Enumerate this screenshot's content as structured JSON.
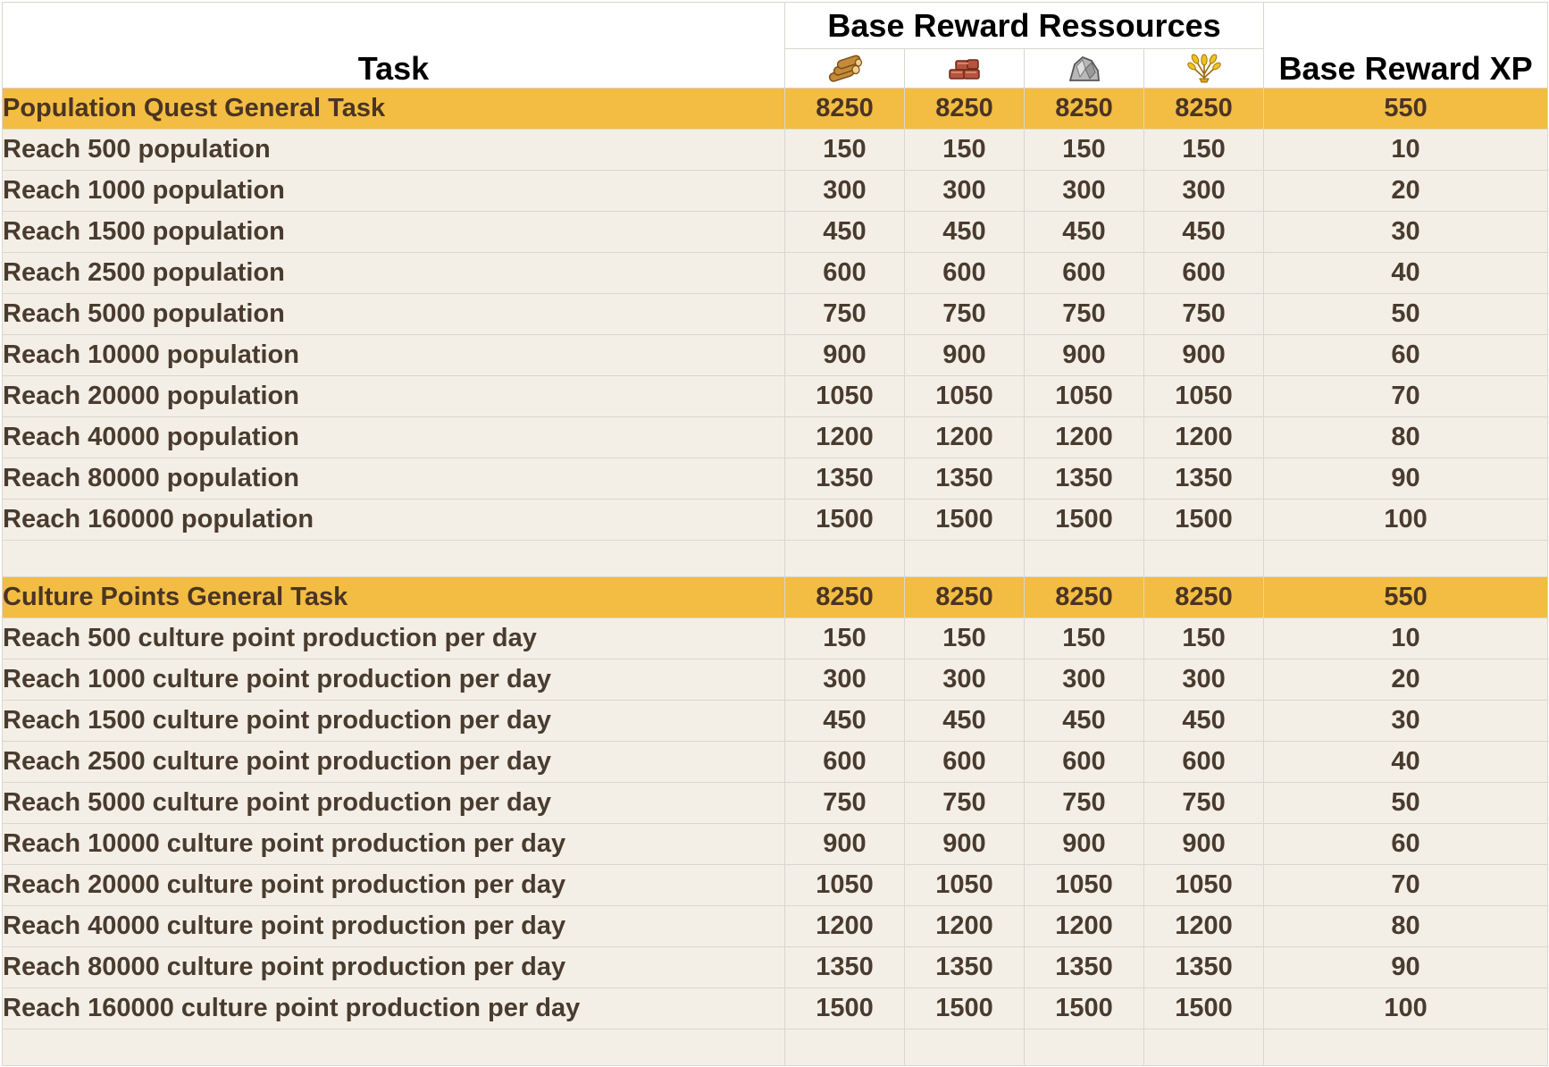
{
  "header": {
    "task_label": "Task",
    "resources_label": "Base Reward Ressources",
    "xp_label": "Base Reward XP",
    "resource_icons": [
      "wood-icon",
      "clay-icon",
      "iron-icon",
      "crop-icon"
    ]
  },
  "sections": [
    {
      "title": "Population Quest General Task",
      "totals": [
        "8250",
        "8250",
        "8250",
        "8250"
      ],
      "total_xp": "550",
      "rows": [
        {
          "task": "Reach 500 population",
          "res": [
            "150",
            "150",
            "150",
            "150"
          ],
          "xp": "10"
        },
        {
          "task": "Reach 1000 population",
          "res": [
            "300",
            "300",
            "300",
            "300"
          ],
          "xp": "20"
        },
        {
          "task": "Reach 1500 population",
          "res": [
            "450",
            "450",
            "450",
            "450"
          ],
          "xp": "30"
        },
        {
          "task": "Reach 2500 population",
          "res": [
            "600",
            "600",
            "600",
            "600"
          ],
          "xp": "40"
        },
        {
          "task": "Reach 5000 population",
          "res": [
            "750",
            "750",
            "750",
            "750"
          ],
          "xp": "50"
        },
        {
          "task": "Reach 10000 population",
          "res": [
            "900",
            "900",
            "900",
            "900"
          ],
          "xp": "60"
        },
        {
          "task": "Reach 20000 population",
          "res": [
            "1050",
            "1050",
            "1050",
            "1050"
          ],
          "xp": "70"
        },
        {
          "task": "Reach 40000 population",
          "res": [
            "1200",
            "1200",
            "1200",
            "1200"
          ],
          "xp": "80"
        },
        {
          "task": "Reach 80000 population",
          "res": [
            "1350",
            "1350",
            "1350",
            "1350"
          ],
          "xp": "90"
        },
        {
          "task": "Reach 160000 population",
          "res": [
            "1500",
            "1500",
            "1500",
            "1500"
          ],
          "xp": "100"
        }
      ]
    },
    {
      "title": "Culture Points General Task",
      "totals": [
        "8250",
        "8250",
        "8250",
        "8250"
      ],
      "total_xp": "550",
      "rows": [
        {
          "task": "Reach 500 culture point production per day",
          "res": [
            "150",
            "150",
            "150",
            "150"
          ],
          "xp": "10"
        },
        {
          "task": "Reach 1000 culture point production per day",
          "res": [
            "300",
            "300",
            "300",
            "300"
          ],
          "xp": "20"
        },
        {
          "task": "Reach 1500 culture point production per day",
          "res": [
            "450",
            "450",
            "450",
            "450"
          ],
          "xp": "30"
        },
        {
          "task": "Reach 2500 culture point production per day",
          "res": [
            "600",
            "600",
            "600",
            "600"
          ],
          "xp": "40"
        },
        {
          "task": "Reach 5000 culture point production per day",
          "res": [
            "750",
            "750",
            "750",
            "750"
          ],
          "xp": "50"
        },
        {
          "task": "Reach 10000 culture point production per day",
          "res": [
            "900",
            "900",
            "900",
            "900"
          ],
          "xp": "60"
        },
        {
          "task": "Reach 20000 culture point production per day",
          "res": [
            "1050",
            "1050",
            "1050",
            "1050"
          ],
          "xp": "70"
        },
        {
          "task": "Reach 40000 culture point production per day",
          "res": [
            "1200",
            "1200",
            "1200",
            "1200"
          ],
          "xp": "80"
        },
        {
          "task": "Reach 80000 culture point production per day",
          "res": [
            "1350",
            "1350",
            "1350",
            "1350"
          ],
          "xp": "90"
        },
        {
          "task": "Reach 160000 culture point production per day",
          "res": [
            "1500",
            "1500",
            "1500",
            "1500"
          ],
          "xp": "100"
        }
      ]
    }
  ]
}
